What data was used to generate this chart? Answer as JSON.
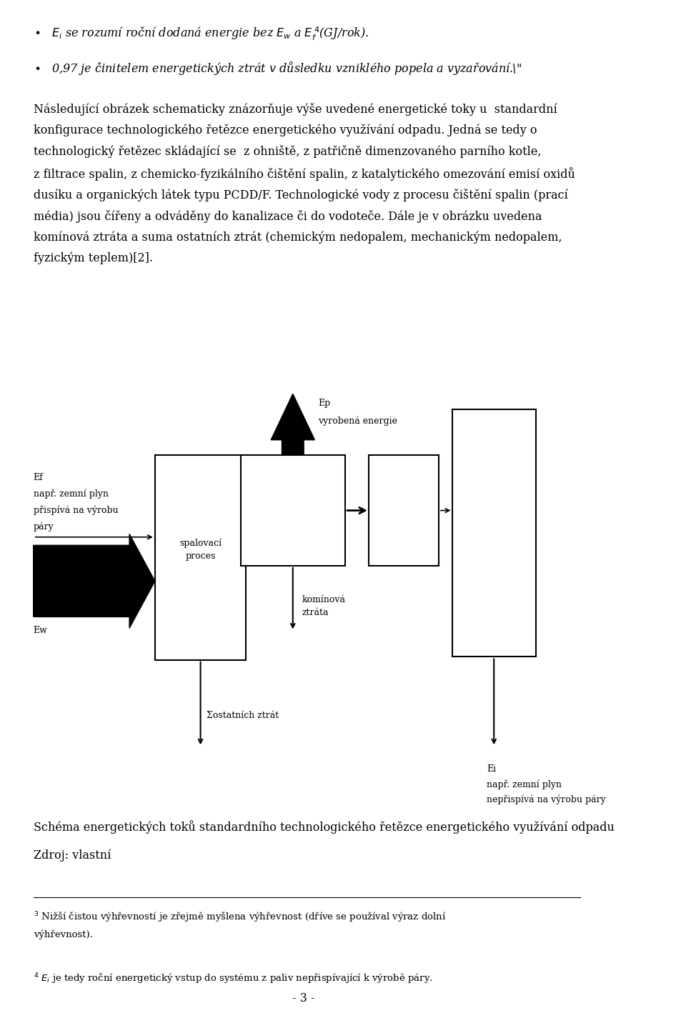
{
  "page_width": 9.6,
  "page_height": 14.32,
  "bg_color": "#ffffff",
  "text_color": "#000000",
  "body_font_size": 11.5,
  "small_font_size": 9.5,
  "diagram_font_size": 9.0,
  "caption_line1": "Schéma energetických toků standardního technologického řetězce energetického využívání odpadu",
  "caption_line2": "Zdroj: vlastní",
  "page_number": "- 3 -"
}
